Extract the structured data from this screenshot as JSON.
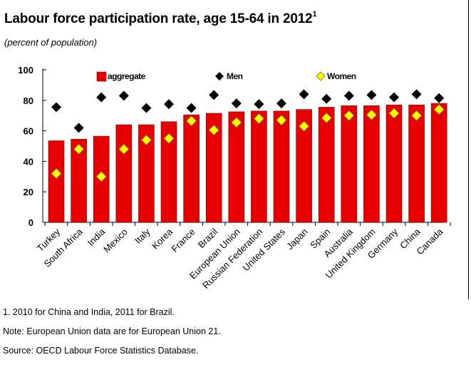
{
  "title": "Labour force participation rate, age 15-64 in 2012",
  "title_sup": "1",
  "subtitle": "(percent of population)",
  "notes": [
    "1. 2010 for China and India, 2011 for Brazil.",
    "Note: European Union data are for European Union 21.",
    "Source: OECD Labour Force Statistics Database."
  ],
  "colors": {
    "bar": "#e60000",
    "bar_edge": "#8b0000",
    "men": "#000000",
    "women": "#ffff00",
    "women_edge": "#7a7a00"
  },
  "chart_data": {
    "type": "bar",
    "categories": [
      "Turkey",
      "South Africa",
      "India",
      "Mexico",
      "Italy",
      "Korea",
      "France",
      "Brazil",
      "European Union",
      "Russian Federation",
      "United States",
      "Japan",
      "Spain",
      "Australia",
      "United Kingdom",
      "Germany",
      "China",
      "Canada"
    ],
    "series": [
      {
        "name": "aggregate",
        "kind": "bar",
        "values": [
          53.5,
          54.5,
          56.5,
          64,
          64,
          66,
          70.5,
          71.5,
          72.5,
          73,
          73,
          74,
          75.5,
          76.5,
          76.5,
          77,
          77,
          78
        ]
      },
      {
        "name": "Men",
        "kind": "diamond",
        "values": [
          75.5,
          62,
          82,
          83,
          75,
          77.5,
          75,
          83.5,
          78,
          77.5,
          78,
          84,
          81,
          83,
          83.5,
          82,
          84,
          81.5
        ]
      },
      {
        "name": "Women",
        "kind": "diamond",
        "values": [
          32,
          48,
          30,
          48,
          54,
          55,
          66.5,
          60.5,
          65.5,
          68,
          67,
          63,
          68.5,
          70,
          70.5,
          71.5,
          70,
          74
        ]
      }
    ],
    "yticks": [
      0,
      20,
      40,
      60,
      80,
      100
    ],
    "ylim": [
      0,
      100
    ],
    "legend_position": "top",
    "grid": false
  }
}
